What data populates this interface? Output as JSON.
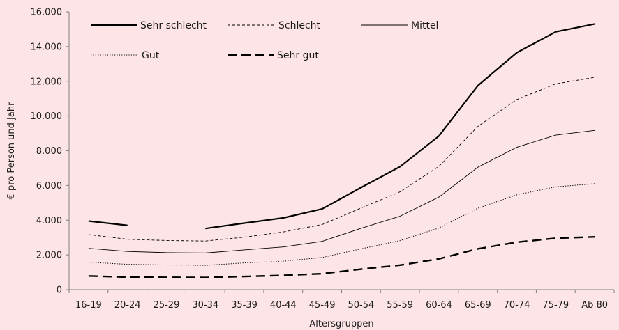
{
  "chart_data": {
    "type": "line",
    "title": "",
    "xlabel": "Altersgruppen",
    "ylabel": "€ pro Person und Jahr",
    "ylim": [
      0,
      16000
    ],
    "yticks": [
      "0",
      "2.000",
      "4.000",
      "6.000",
      "8.000",
      "10.000",
      "12.000",
      "14.000",
      "16.000"
    ],
    "ytick_values": [
      0,
      2000,
      4000,
      6000,
      8000,
      10000,
      12000,
      14000,
      16000
    ],
    "grid": false,
    "legend_placement": "top-left",
    "categories": [
      "16-19",
      "20-24",
      "25-29",
      "30-34",
      "35-39",
      "40-44",
      "45-49",
      "50-54",
      "55-59",
      "60-64",
      "65-69",
      "70-74",
      "75-79",
      "Ab 80"
    ],
    "series": [
      {
        "name": "Sehr schlecht",
        "values": [
          3950,
          3700,
          null,
          3520,
          3830,
          4130,
          4650,
          5880,
          7080,
          8850,
          11750,
          13650,
          14850,
          15300
        ],
        "style": "solid-thick"
      },
      {
        "name": "Schlecht",
        "values": [
          3170,
          2900,
          2830,
          2800,
          3020,
          3320,
          3750,
          4700,
          5630,
          7100,
          9400,
          10950,
          11850,
          12230
        ],
        "style": "dashed-thin"
      },
      {
        "name": "Mittel",
        "values": [
          2380,
          2200,
          2130,
          2110,
          2290,
          2460,
          2780,
          3530,
          4230,
          5330,
          7050,
          8200,
          8900,
          9170
        ],
        "style": "solid-thin"
      },
      {
        "name": "Gut",
        "values": [
          1580,
          1460,
          1420,
          1400,
          1540,
          1640,
          1850,
          2350,
          2820,
          3550,
          4690,
          5460,
          5920,
          6100
        ],
        "style": "dotted"
      },
      {
        "name": "Sehr gut",
        "values": [
          790,
          720,
          710,
          700,
          760,
          820,
          920,
          1180,
          1410,
          1770,
          2350,
          2730,
          2960,
          3040
        ],
        "style": "dashed-thick"
      }
    ]
  },
  "colors": {
    "background": "#fde4e7",
    "line": "#000000",
    "axis": "#7f7f7f"
  }
}
